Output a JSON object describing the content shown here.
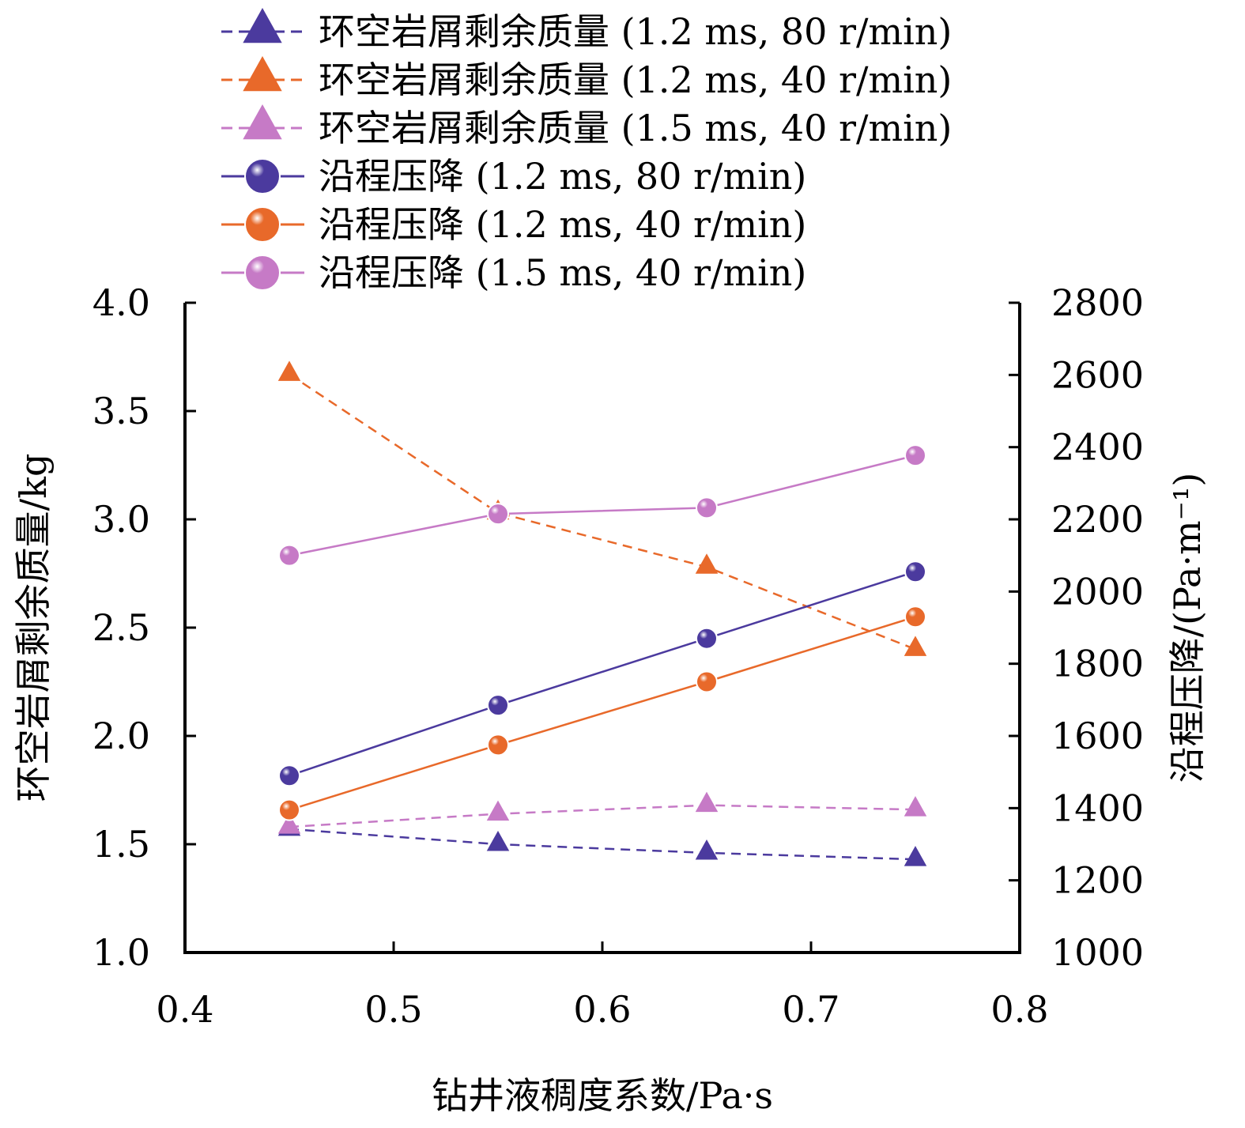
{
  "chart_data": {
    "type": "line",
    "x": [
      0.45,
      0.55,
      0.65,
      0.75
    ],
    "xlabel": "钻井液稠度系数/Pa·s",
    "xlim": [
      0.4,
      0.8
    ],
    "xticks": [
      "0.4",
      "0.5",
      "0.6",
      "0.7",
      "0.8"
    ],
    "y_left": {
      "label": "环空岩屑剩余质量/kg",
      "lim": [
        1.0,
        4.0
      ],
      "ticks": [
        "1.0",
        "1.5",
        "2.0",
        "2.5",
        "3.0",
        "3.5",
        "4.0"
      ]
    },
    "y_right": {
      "label": "沿程压降/(Pa·m⁻¹)",
      "lim": [
        1000,
        2800
      ],
      "ticks": [
        "1000",
        "1200",
        "1400",
        "1600",
        "1800",
        "2000",
        "2200",
        "2400",
        "2600",
        "2800"
      ]
    },
    "legend_placement": "top",
    "series": [
      {
        "name": "环空岩屑剩余质量 (1.2 ms, 80 r/min)",
        "axis": "left",
        "marker": "triangle",
        "dash": true,
        "color": "#4b3a9e",
        "values": [
          1.57,
          1.5,
          1.46,
          1.43
        ]
      },
      {
        "name": "环空岩屑剩余质量 (1.2 ms, 40 r/min)",
        "axis": "left",
        "marker": "triangle",
        "dash": true,
        "color": "#e8692a",
        "values": [
          3.67,
          3.03,
          2.78,
          2.4
        ]
      },
      {
        "name": "环空岩屑剩余质量 (1.5 ms, 40 r/min)",
        "axis": "left",
        "marker": "triangle",
        "dash": true,
        "color": "#c67ac6",
        "values": [
          1.58,
          1.64,
          1.68,
          1.66
        ]
      },
      {
        "name": "沿程压降 (1.2 ms, 80 r/min)",
        "axis": "right",
        "marker": "circle",
        "dash": false,
        "color": "#4b3a9e",
        "values": [
          1490,
          1685,
          1870,
          2055
        ]
      },
      {
        "name": "沿程压降 (1.2 ms, 40 r/min)",
        "axis": "right",
        "marker": "circle",
        "dash": false,
        "color": "#e8692a",
        "values": [
          1395,
          1575,
          1750,
          1930
        ]
      },
      {
        "name": "沿程压降 (1.5 ms, 40 r/min)",
        "axis": "right",
        "marker": "circle",
        "dash": false,
        "color": "#c67ac6",
        "values": [
          2100,
          2215,
          2232,
          2377
        ]
      }
    ]
  }
}
